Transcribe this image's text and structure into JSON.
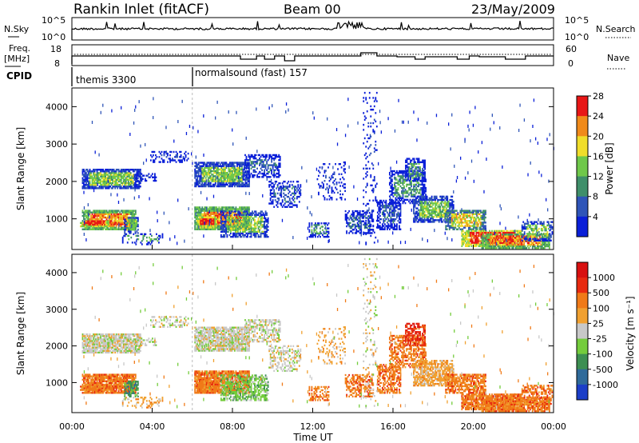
{
  "header": {
    "title": "Rankin Inlet (fitACF)",
    "beam": "Beam 00",
    "date": "23/May/2009"
  },
  "top_panels": {
    "sky_label": "N.Sky",
    "sky_ticks": [
      "10^5",
      "10^0"
    ],
    "search_label": "N.Search",
    "search_ticks": [
      "10^5",
      "10^0"
    ],
    "freq_label_1": "Freq.",
    "freq_label_2": "[MHz]",
    "freq_ticks": [
      "18",
      "8"
    ],
    "nave_label": "Nave",
    "nave_ticks": [
      "60",
      "0"
    ],
    "cpid_label": "CPID",
    "cpid_segments": [
      {
        "name": "themis 3300",
        "start_hour": 0,
        "end_hour": 6
      },
      {
        "name": "normalsound (fast) 157",
        "start_hour": 6,
        "end_hour": 24
      }
    ]
  },
  "chart_data": [
    {
      "type": "heatmap",
      "name": "power",
      "ylabel": "Slant Range [km]",
      "xlabel": "",
      "xlim_hours": [
        0,
        24
      ],
      "ylim": [
        180,
        4500
      ],
      "y_ticks": [
        "1000",
        "2000",
        "3000",
        "4000"
      ],
      "colorbar_label": "Power [dB]",
      "colorbar_ticks": [
        "4",
        "8",
        "12",
        "16",
        "20",
        "24",
        "28"
      ],
      "colorbar_colors": [
        "#0a1fd8",
        "#2f55b8",
        "#3f8f6a",
        "#6fc84a",
        "#f0dd2a",
        "#f08a1a",
        "#e81616"
      ]
    },
    {
      "type": "heatmap",
      "name": "velocity",
      "ylabel": "Slant Range [km]",
      "xlabel": "Time UT",
      "xlim_hours": [
        0,
        24
      ],
      "ylim": [
        180,
        4500
      ],
      "y_ticks": [
        "1000",
        "2000",
        "3000",
        "4000"
      ],
      "x_ticks": [
        "00:00",
        "04:00",
        "08:00",
        "12:00",
        "16:00",
        "20:00",
        "00:00"
      ],
      "colorbar_label": "Velocity [m s⁻¹]",
      "colorbar_ticks": [
        "1000",
        "500",
        "100",
        "25",
        "-25",
        "-100",
        "-500",
        "-1000"
      ],
      "colorbar_colors": [
        "#1b3ec8",
        "#2f6a9a",
        "#3d8f52",
        "#74cc3c",
        "#c8c8c8",
        "#f0a030",
        "#f07a18",
        "#e82a10",
        "#d81010"
      ]
    }
  ]
}
